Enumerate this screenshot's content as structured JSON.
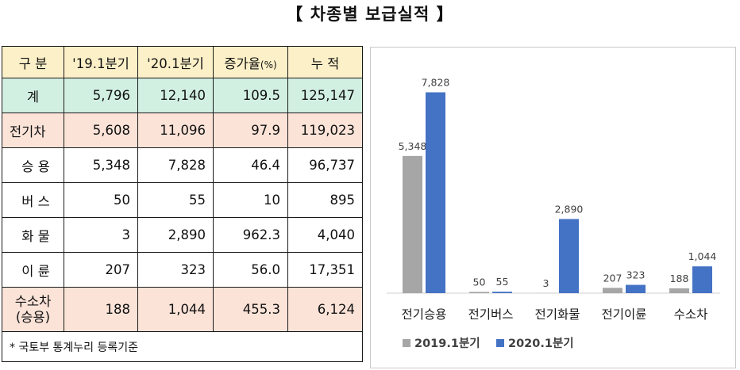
{
  "title": "【 차종별 보급실적 】",
  "table": {
    "headers": [
      "구  분",
      "'19.1분기",
      "'20.1분기",
      "증가율",
      "(%)",
      "누  적"
    ],
    "rows": [
      {
        "label": "계",
        "cls": "total",
        "values": [
          "5,796",
          "12,140",
          "109.5",
          "125,147"
        ]
      },
      {
        "label": "전기차",
        "cls": "ev",
        "values": [
          "5,608",
          "11,096",
          "97.9",
          "119,023"
        ]
      },
      {
        "label": "승  용",
        "cls": "sub",
        "values": [
          "5,348",
          "7,828",
          "46.4",
          "96,737"
        ]
      },
      {
        "label": "버  스",
        "cls": "sub",
        "values": [
          "50",
          "55",
          "10",
          "895"
        ]
      },
      {
        "label": "화  물",
        "cls": "sub",
        "values": [
          "3",
          "2,890",
          "962.3",
          "4,040"
        ]
      },
      {
        "label": "이  륜",
        "cls": "sub",
        "values": [
          "207",
          "323",
          "56.0",
          "17,351"
        ]
      }
    ],
    "h2_row": {
      "label_line1": "수소차",
      "label_line2": "(승용)",
      "values": [
        "188",
        "1,044",
        "455.3",
        "6,124"
      ]
    },
    "note": "* 국토부 통계누리 등록기준"
  },
  "chart_data": {
    "type": "bar",
    "categories": [
      "전기승용",
      "전기버스",
      "전기화물",
      "전기이륜",
      "수소차"
    ],
    "series": [
      {
        "name": "2019.1분기",
        "values": [
          5348,
          50,
          3,
          207,
          188
        ],
        "labels": [
          "5,348",
          "50",
          "3",
          "207",
          "188"
        ],
        "color": "#a6a6a6"
      },
      {
        "name": "2020.1분기",
        "values": [
          7828,
          55,
          2890,
          323,
          1044
        ],
        "labels": [
          "7,828",
          "55",
          "2,890",
          "323",
          "1,044"
        ],
        "color": "#4472c4"
      }
    ],
    "ylim": [
      0,
      8400
    ],
    "grid": false,
    "legend": "bottom"
  }
}
